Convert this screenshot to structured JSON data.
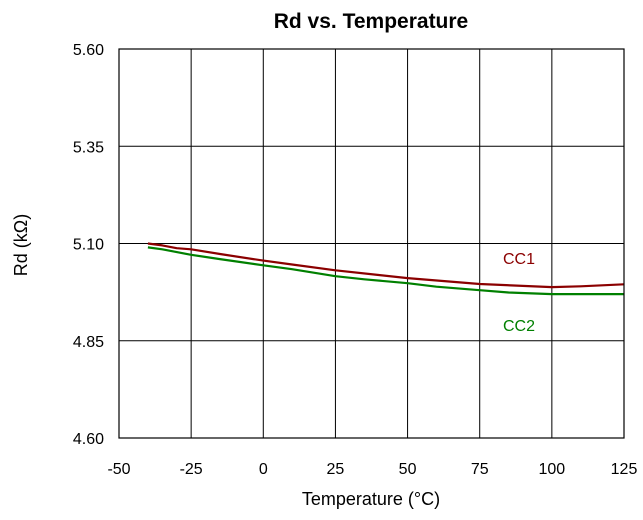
{
  "chart_data": {
    "type": "line",
    "title": "Rd vs. Temperature",
    "xlabel": "Temperature (°C)",
    "ylabel": "Rd (kΩ)",
    "xlim": [
      -50,
      125
    ],
    "ylim": [
      4.6,
      5.6
    ],
    "xticks": [
      "-50",
      "-25",
      "0",
      "25",
      "50",
      "75",
      "100",
      "125"
    ],
    "yticks": [
      "4.60",
      "4.85",
      "5.10",
      "5.35",
      "5.60"
    ],
    "grid": true,
    "series": [
      {
        "name": "CC1",
        "color": "#8b0000",
        "x": [
          -40,
          -35,
          -30,
          -25,
          -15,
          0,
          10,
          25,
          40,
          50,
          75,
          100,
          110,
          125
        ],
        "y": [
          5.1,
          5.095,
          5.088,
          5.085,
          5.073,
          5.056,
          5.046,
          5.031,
          5.019,
          5.011,
          4.996,
          4.988,
          4.99,
          4.995
        ]
      },
      {
        "name": "CC2",
        "color": "#008000",
        "x": [
          -40,
          -35,
          -30,
          -25,
          -15,
          0,
          10,
          25,
          35,
          50,
          60,
          75,
          85,
          100,
          110,
          125
        ],
        "y": [
          5.09,
          5.085,
          5.078,
          5.071,
          5.06,
          5.044,
          5.034,
          5.016,
          5.008,
          4.998,
          4.989,
          4.98,
          4.974,
          4.97,
          4.97,
          4.97
        ]
      }
    ]
  }
}
